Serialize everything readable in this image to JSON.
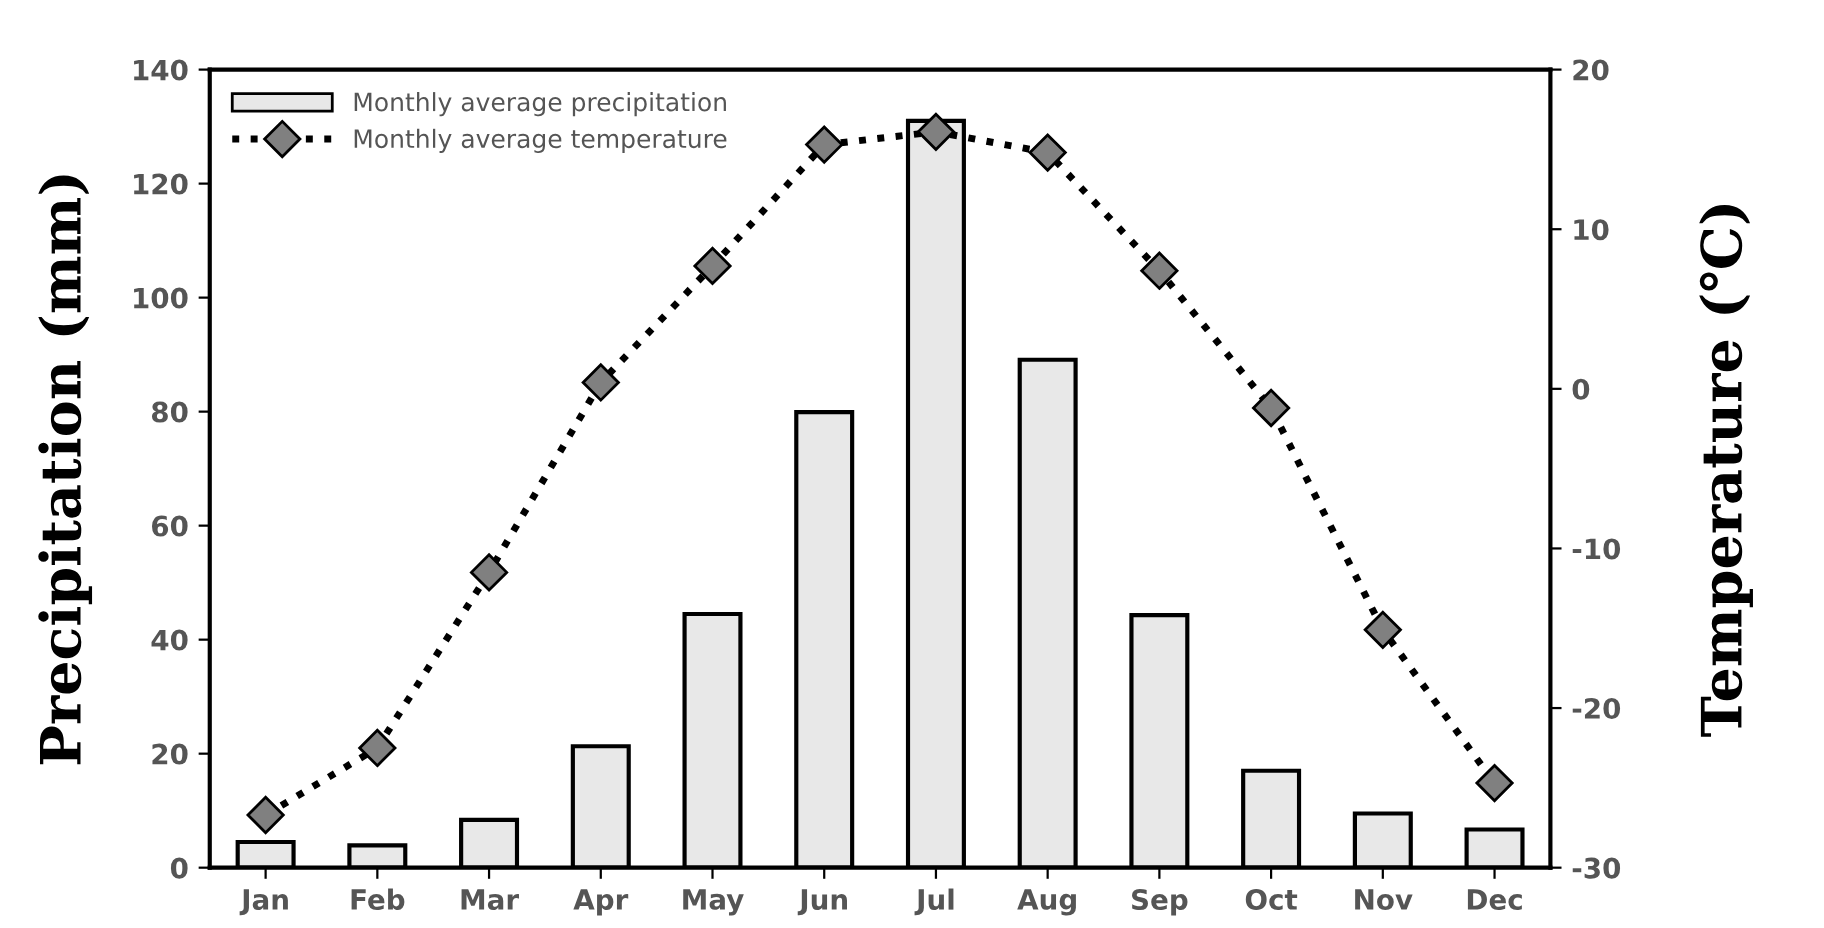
{
  "chart_data": {
    "type": "bar",
    "categories": [
      "Jan",
      "Feb",
      "Mar",
      "Apr",
      "May",
      "Jun",
      "Jul",
      "Aug",
      "Sep",
      "Oct",
      "Nov",
      "Dec"
    ],
    "series": [
      {
        "name": "Monthly average precipitation",
        "color": "#e8e8e8",
        "values": [
          4.5,
          3.9,
          8.4,
          21.3,
          44.5,
          79.9,
          131,
          89.1,
          44.3,
          17.0,
          9.5,
          6.7
        ]
      },
      {
        "name": "Monthly average temperature",
        "type": "line",
        "axis": "y2",
        "color": "#808080",
        "marker": "diamond",
        "line_style": "dotted",
        "values": [
          -26.7,
          -22.5,
          -11.5,
          0.4,
          7.7,
          15.3,
          16.1,
          14.8,
          7.4,
          -1.2,
          -15.1,
          -24.7
        ]
      }
    ],
    "ylabel": "Precipitation (mm)",
    "y2label": "Temperature (℃)",
    "ylim": [
      0,
      140
    ],
    "yticks": [
      0,
      20,
      40,
      60,
      80,
      100,
      120,
      140
    ],
    "y2lim": [
      -30,
      20
    ],
    "y2ticks": [
      -30,
      -20,
      -10,
      0,
      10,
      20
    ],
    "legend": "top left",
    "grid": false
  }
}
